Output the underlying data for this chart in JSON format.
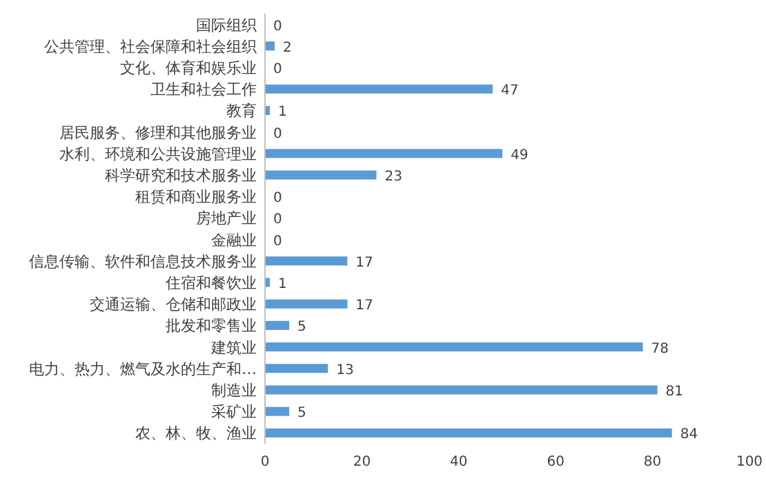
{
  "chart_data": {
    "type": "bar",
    "orientation": "horizontal",
    "categories": [
      "国际组织",
      "公共管理、社会保障和社会组织",
      "文化、体育和娱乐业",
      "卫生和社会工作",
      "教育",
      "居民服务、修理和其他服务业",
      "水利、环境和公共设施管理业",
      "科学研究和技术服务业",
      "租赁和商业服务业",
      "房地产业",
      "金融业",
      "信息传输、软件和信息技术服务业",
      "住宿和餐饮业",
      "交通运输、仓储和邮政业",
      "批发和零售业",
      "建筑业",
      "电力、热力、燃气及水的生产和…",
      "制造业",
      "采矿业",
      "农、林、牧、渔业"
    ],
    "values": [
      0,
      2,
      0,
      47,
      1,
      0,
      49,
      23,
      0,
      0,
      0,
      17,
      1,
      17,
      5,
      78,
      13,
      81,
      5,
      84
    ],
    "color": "#5b9bd5",
    "xlim": [
      0,
      100
    ],
    "xticks": [
      0,
      20,
      40,
      60,
      80,
      100
    ],
    "data_labels": true,
    "grid": false
  }
}
